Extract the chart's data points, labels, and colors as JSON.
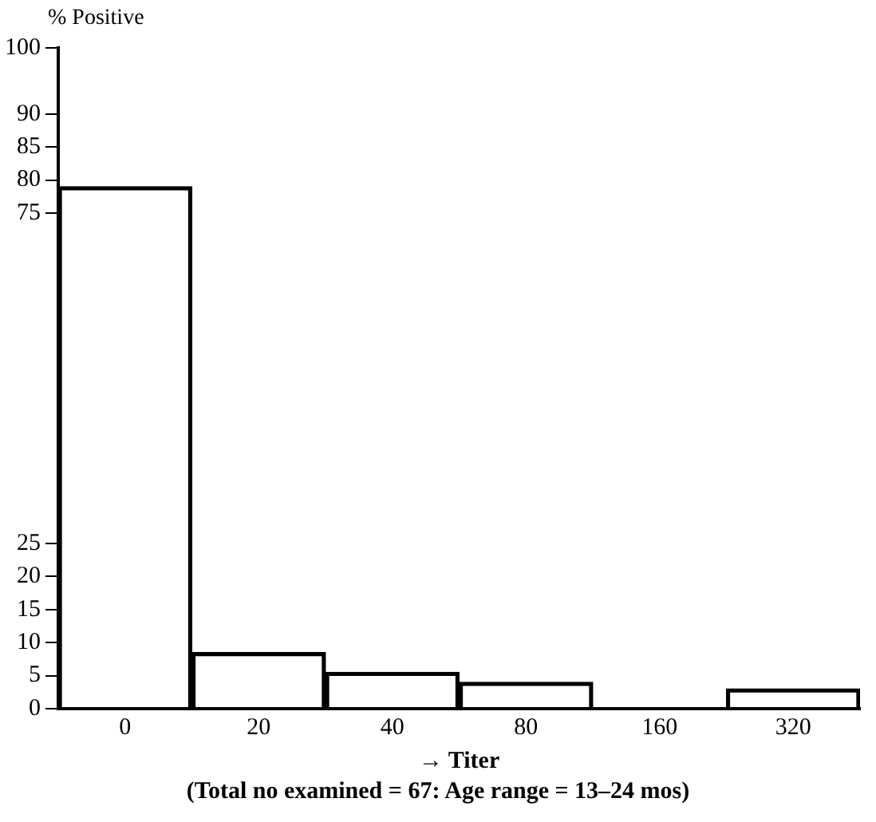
{
  "chart_data": {
    "type": "bar",
    "ylabel": "% Positive",
    "xlabel": "→ Titer",
    "annotations": [
      "(Total no examined = 67: Age range = 13–24 mos)"
    ],
    "categories": [
      "0",
      "20",
      "40",
      "80",
      "160",
      "320"
    ],
    "values": [
      79,
      8.5,
      5.5,
      4,
      0,
      3
    ],
    "color": "#000000",
    "ylim": [
      0,
      100
    ],
    "yticks": [
      0,
      5,
      10,
      15,
      20,
      25,
      75,
      80,
      85,
      90,
      100
    ],
    "grid": false,
    "legend": false
  }
}
